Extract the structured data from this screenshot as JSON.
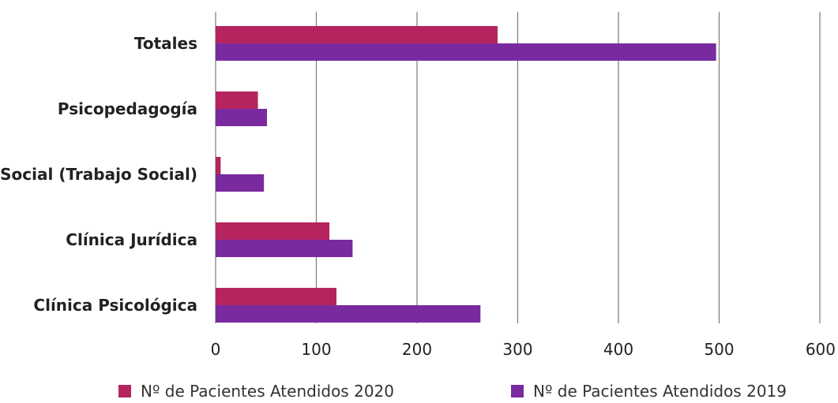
{
  "chart_data": {
    "type": "bar",
    "orientation": "horizontal",
    "categories": [
      "Totales",
      "Psicopedagogía",
      "Social (Trabajo Social)",
      "Clínica Jurídica",
      "Clínica Psicológica"
    ],
    "series": [
      {
        "name": "Nº de Pacientes Atendidos 2020",
        "color": "#b5245f",
        "values": [
          280,
          42,
          5,
          113,
          120
        ]
      },
      {
        "name": "Nº de Pacientes Atendidos 2019",
        "color": "#7a2a9f",
        "values": [
          497,
          51,
          48,
          136,
          263
        ]
      }
    ],
    "xlim": [
      0,
      600
    ],
    "xticks": [
      "0",
      "100",
      "200",
      "300",
      "400",
      "500",
      "600"
    ],
    "grid": true,
    "legend_position": "bottom"
  }
}
